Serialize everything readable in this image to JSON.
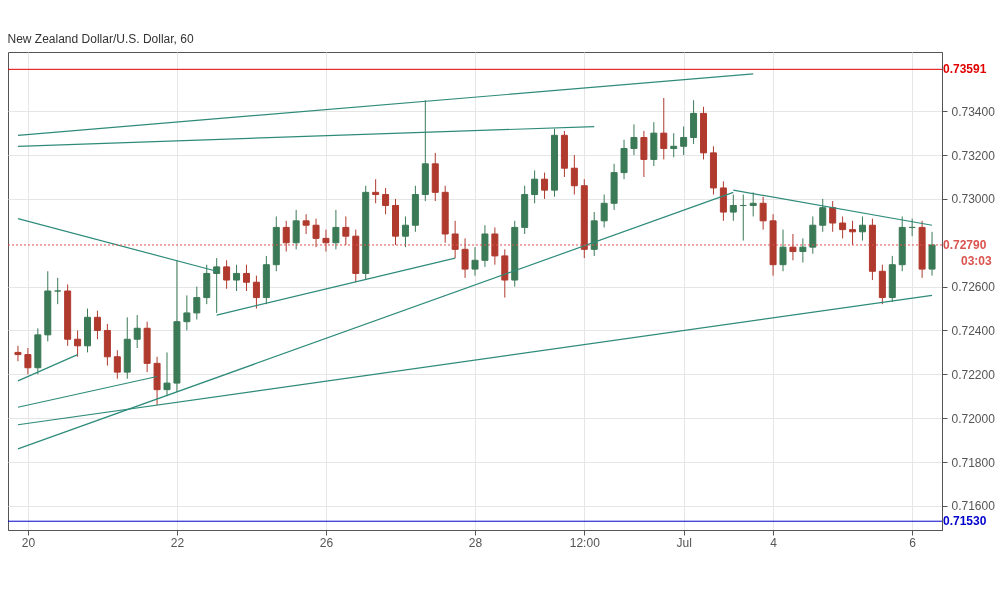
{
  "chart_data": {
    "type": "candlestick",
    "title": "New Zealand Dollar/U.S. Dollar, 60",
    "categories": [
      null,
      "20",
      null,
      null,
      null,
      null,
      null,
      null,
      null,
      null,
      null,
      null,
      null,
      null,
      null,
      null,
      "22",
      null,
      null,
      null,
      null,
      null,
      null,
      null,
      null,
      null,
      null,
      null,
      null,
      null,
      null,
      "26",
      null,
      null,
      null,
      null,
      null,
      null,
      null,
      null,
      null,
      null,
      null,
      null,
      null,
      null,
      "28",
      null,
      null,
      null,
      null,
      null,
      null,
      null,
      null,
      null,
      null,
      "12:00",
      null,
      null,
      null,
      null,
      null,
      null,
      null,
      null,
      null,
      "Jul",
      null,
      null,
      null,
      null,
      null,
      null,
      null,
      null,
      "4",
      null,
      null,
      null,
      null,
      null,
      null,
      null,
      null,
      null,
      null,
      null,
      null,
      null,
      "6",
      null,
      null
    ],
    "ohlc": [
      [
        0.723,
        0.7233,
        0.7226,
        0.7229
      ],
      [
        0.7229,
        0.7232,
        0.722,
        0.7223
      ],
      [
        0.7223,
        0.7241,
        0.722,
        0.7238
      ],
      [
        0.7238,
        0.7267,
        0.7235,
        0.7258
      ],
      [
        0.7258,
        0.7264,
        0.7252,
        0.7258
      ],
      [
        0.7258,
        0.7261,
        0.7233,
        0.7236
      ],
      [
        0.7236,
        0.724,
        0.7228,
        0.7233
      ],
      [
        0.7233,
        0.725,
        0.723,
        0.7246
      ],
      [
        0.7246,
        0.7249,
        0.7236,
        0.724
      ],
      [
        0.724,
        0.7243,
        0.7224,
        0.7228
      ],
      [
        0.7228,
        0.7231,
        0.7218,
        0.7221
      ],
      [
        0.7221,
        0.7246,
        0.7218,
        0.7236
      ],
      [
        0.7236,
        0.7247,
        0.7232,
        0.7241
      ],
      [
        0.7241,
        0.7244,
        0.7221,
        0.7225
      ],
      [
        0.7225,
        0.7228,
        0.7206,
        0.7213
      ],
      [
        0.7213,
        0.723,
        0.721,
        0.7216
      ],
      [
        0.7216,
        0.7272,
        0.7212,
        0.7244
      ],
      [
        0.7244,
        0.7256,
        0.724,
        0.7248
      ],
      [
        0.7248,
        0.726,
        0.7245,
        0.7255
      ],
      [
        0.7255,
        0.727,
        0.7252,
        0.7266
      ],
      [
        0.7266,
        0.7273,
        0.7248,
        0.7269
      ],
      [
        0.7269,
        0.7272,
        0.7259,
        0.7263
      ],
      [
        0.7263,
        0.727,
        0.7258,
        0.7266
      ],
      [
        0.7266,
        0.727,
        0.7258,
        0.7262
      ],
      [
        0.7262,
        0.7265,
        0.725,
        0.7255
      ],
      [
        0.7255,
        0.7274,
        0.7252,
        0.727
      ],
      [
        0.727,
        0.7292,
        0.7267,
        0.7287
      ],
      [
        0.7287,
        0.729,
        0.7276,
        0.728
      ],
      [
        0.728,
        0.7295,
        0.7277,
        0.729
      ],
      [
        0.729,
        0.7293,
        0.7284,
        0.7288
      ],
      [
        0.7288,
        0.7291,
        0.7278,
        0.7282
      ],
      [
        0.7282,
        0.7286,
        0.7276,
        0.728
      ],
      [
        0.728,
        0.7295,
        0.7277,
        0.7287
      ],
      [
        0.7287,
        0.7292,
        0.7279,
        0.7283
      ],
      [
        0.7283,
        0.7286,
        0.7262,
        0.7266
      ],
      [
        0.7266,
        0.7306,
        0.7263,
        0.7303
      ],
      [
        0.7303,
        0.7309,
        0.7298,
        0.7302
      ],
      [
        0.7302,
        0.7305,
        0.7293,
        0.7297
      ],
      [
        0.7297,
        0.73,
        0.7279,
        0.7283
      ],
      [
        0.7283,
        0.7292,
        0.7278,
        0.7288
      ],
      [
        0.7288,
        0.7306,
        0.7285,
        0.7302
      ],
      [
        0.7302,
        0.7345,
        0.7299,
        0.7316
      ],
      [
        0.7316,
        0.7321,
        0.7299,
        0.7303
      ],
      [
        0.7303,
        0.7306,
        0.728,
        0.7284
      ],
      [
        0.7284,
        0.729,
        0.7273,
        0.7277
      ],
      [
        0.7277,
        0.7282,
        0.7264,
        0.7268
      ],
      [
        0.7268,
        0.7278,
        0.7265,
        0.7272
      ],
      [
        0.7272,
        0.7288,
        0.7269,
        0.7284
      ],
      [
        0.7284,
        0.7287,
        0.727,
        0.7274
      ],
      [
        0.7274,
        0.7277,
        0.7255,
        0.7263
      ],
      [
        0.7263,
        0.729,
        0.726,
        0.7287
      ],
      [
        0.7287,
        0.7306,
        0.7284,
        0.7302
      ],
      [
        0.7302,
        0.7313,
        0.7298,
        0.7309
      ],
      [
        0.7309,
        0.7312,
        0.73,
        0.7304
      ],
      [
        0.7304,
        0.7332,
        0.7301,
        0.7329
      ],
      [
        0.7329,
        0.7331,
        0.731,
        0.7314
      ],
      [
        0.7314,
        0.732,
        0.7302,
        0.7306
      ],
      [
        0.7306,
        0.7309,
        0.7273,
        0.7277
      ],
      [
        0.7277,
        0.7294,
        0.7274,
        0.729
      ],
      [
        0.729,
        0.7302,
        0.7287,
        0.7298
      ],
      [
        0.7298,
        0.7316,
        0.7295,
        0.7312
      ],
      [
        0.7312,
        0.7327,
        0.7309,
        0.7323
      ],
      [
        0.7323,
        0.7334,
        0.732,
        0.7328
      ],
      [
        0.7328,
        0.7331,
        0.731,
        0.7318
      ],
      [
        0.7318,
        0.7335,
        0.7315,
        0.733
      ],
      [
        0.733,
        0.7346,
        0.7318,
        0.7323
      ],
      [
        0.7323,
        0.733,
        0.7319,
        0.7324
      ],
      [
        0.7324,
        0.7333,
        0.732,
        0.7328
      ],
      [
        0.7328,
        0.7345,
        0.7325,
        0.7339
      ],
      [
        0.7339,
        0.7342,
        0.7318,
        0.7321
      ],
      [
        0.7321,
        0.7324,
        0.7302,
        0.7305
      ],
      [
        0.7305,
        0.7308,
        0.729,
        0.7294
      ],
      [
        0.7294,
        0.7302,
        0.729,
        0.7297
      ],
      [
        0.7297,
        0.7302,
        0.7281,
        0.7297
      ],
      [
        0.7297,
        0.7303,
        0.7292,
        0.7298
      ],
      [
        0.7298,
        0.7301,
        0.7286,
        0.729
      ],
      [
        0.729,
        0.7293,
        0.7265,
        0.727
      ],
      [
        0.727,
        0.7286,
        0.7267,
        0.7278
      ],
      [
        0.7278,
        0.7284,
        0.7272,
        0.7276
      ],
      [
        0.7276,
        0.7282,
        0.7271,
        0.7278
      ],
      [
        0.7278,
        0.7292,
        0.7275,
        0.7288
      ],
      [
        0.7288,
        0.73,
        0.7285,
        0.7296
      ],
      [
        0.7296,
        0.7299,
        0.7285,
        0.7289
      ],
      [
        0.7289,
        0.7292,
        0.7282,
        0.7286
      ],
      [
        0.7286,
        0.729,
        0.7279,
        0.7285
      ],
      [
        0.7285,
        0.7292,
        0.7281,
        0.7288
      ],
      [
        0.7288,
        0.7291,
        0.7263,
        0.7267
      ],
      [
        0.7267,
        0.727,
        0.7252,
        0.7255
      ],
      [
        0.7255,
        0.7274,
        0.7253,
        0.727
      ],
      [
        0.727,
        0.7292,
        0.7267,
        0.7287
      ],
      [
        0.7287,
        0.7291,
        0.7283,
        0.7287
      ],
      [
        0.7287,
        0.729,
        0.7264,
        0.7268
      ],
      [
        0.7268,
        0.7285,
        0.7265,
        0.7279
      ]
    ],
    "colors": [
      "#b03a2e",
      "#b03a2e",
      "#3b7a57",
      "#3b7a57",
      "#3b7a57",
      "#b03a2e",
      "#b03a2e",
      "#3b7a57",
      "#b03a2e",
      "#b03a2e",
      "#b03a2e",
      "#3b7a57",
      "#3b7a57",
      "#b03a2e",
      "#b03a2e",
      "#3b7a57",
      "#3b7a57",
      "#3b7a57",
      "#3b7a57",
      "#3b7a57",
      "#3b7a57",
      "#b03a2e",
      "#3b7a57",
      "#b03a2e",
      "#b03a2e",
      "#3b7a57",
      "#3b7a57",
      "#b03a2e",
      "#3b7a57",
      "#b03a2e",
      "#b03a2e",
      "#b03a2e",
      "#3b7a57",
      "#b03a2e",
      "#b03a2e",
      "#3b7a57",
      "#b03a2e",
      "#b03a2e",
      "#b03a2e",
      "#3b7a57",
      "#3b7a57",
      "#3b7a57",
      "#b03a2e",
      "#b03a2e",
      "#b03a2e",
      "#b03a2e",
      "#3b7a57",
      "#3b7a57",
      "#b03a2e",
      "#b03a2e",
      "#3b7a57",
      "#3b7a57",
      "#3b7a57",
      "#b03a2e",
      "#3b7a57",
      "#b03a2e",
      "#b03a2e",
      "#b03a2e",
      "#3b7a57",
      "#3b7a57",
      "#3b7a57",
      "#3b7a57",
      "#3b7a57",
      "#b03a2e",
      "#3b7a57",
      "#b03a2e",
      "#3b7a57",
      "#3b7a57",
      "#3b7a57",
      "#b03a2e",
      "#b03a2e",
      "#b03a2e",
      "#3b7a57",
      "#3b7a57",
      "#3b7a57",
      "#b03a2e",
      "#b03a2e",
      "#3b7a57",
      "#b03a2e",
      "#3b7a57",
      "#3b7a57",
      "#3b7a57",
      "#b03a2e",
      "#b03a2e",
      "#b03a2e",
      "#3b7a57",
      "#b03a2e",
      "#b03a2e",
      "#3b7a57",
      "#3b7a57",
      "#3b7a57",
      "#b03a2e",
      "#3b7a57"
    ],
    "series": [
      {
        "type": "line",
        "color": "#2e8b7a",
        "values": [
          0.7329,
          null,
          null,
          null,
          null,
          null,
          null,
          null,
          null,
          null,
          null,
          null,
          null,
          null,
          null,
          null,
          null,
          null,
          null,
          null,
          null,
          null,
          null,
          null,
          null,
          null,
          null,
          null,
          null,
          null,
          null,
          null,
          null,
          null,
          null,
          null,
          null,
          null,
          null,
          null,
          null,
          null,
          null,
          null,
          null,
          null,
          null,
          null,
          null,
          null,
          null,
          null,
          null,
          null,
          null,
          null,
          null,
          null,
          null,
          null,
          null,
          null,
          null,
          null,
          null,
          null,
          null,
          null,
          null,
          null,
          null,
          null,
          null,
          null,
          0.7357,
          null,
          null,
          null,
          null,
          null,
          null,
          null,
          null,
          null,
          null,
          null,
          null,
          null,
          null,
          null,
          null,
          null,
          null
        ]
      },
      {
        "type": "line",
        "color": "#2e8b7a",
        "values": [
          0.7324,
          null,
          null,
          null,
          null,
          null,
          null,
          null,
          null,
          null,
          null,
          null,
          null,
          null,
          null,
          null,
          null,
          null,
          null,
          null,
          null,
          null,
          null,
          null,
          null,
          null,
          null,
          null,
          null,
          null,
          null,
          null,
          null,
          null,
          null,
          null,
          null,
          null,
          null,
          null,
          null,
          null,
          null,
          null,
          null,
          null,
          null,
          null,
          null,
          null,
          null,
          null,
          null,
          null,
          null,
          null,
          null,
          null,
          0.7333,
          null,
          null,
          null,
          null,
          null,
          null,
          null,
          null,
          null,
          null,
          null,
          null,
          null,
          null,
          null,
          null,
          null,
          null,
          null,
          null,
          null,
          null,
          null,
          null,
          null,
          null,
          null,
          null,
          null,
          null,
          null,
          null,
          null,
          null
        ]
      },
      {
        "type": "line",
        "color": "#2e8b7a",
        "values": [
          0.7291,
          null,
          null,
          null,
          null,
          null,
          null,
          null,
          null,
          null,
          null,
          null,
          null,
          null,
          null,
          null,
          null,
          null,
          null,
          null,
          0.7267,
          null,
          null,
          null,
          null,
          null,
          null,
          null,
          null,
          null,
          null,
          null,
          null,
          null,
          null,
          null,
          null,
          null,
          null,
          null,
          null,
          null,
          null,
          null,
          null,
          null,
          null,
          null,
          null,
          null,
          null,
          null,
          null,
          null,
          null,
          null,
          null,
          null,
          null,
          null,
          null,
          null,
          null,
          null,
          null,
          null,
          null,
          null,
          null,
          null,
          null,
          null,
          null,
          null,
          null,
          null,
          null,
          null,
          null,
          null,
          null,
          null,
          null,
          null,
          null,
          null,
          null,
          null,
          null,
          null,
          null,
          null,
          null
        ]
      },
      {
        "type": "line",
        "color": "#2e8b7a",
        "values": [
          null,
          null,
          null,
          null,
          null,
          null,
          null,
          null,
          null,
          null,
          null,
          null,
          null,
          null,
          null,
          null,
          null,
          null,
          null,
          null,
          0.7247,
          null,
          null,
          null,
          null,
          null,
          null,
          null,
          null,
          null,
          null,
          null,
          null,
          null,
          null,
          null,
          null,
          null,
          null,
          null,
          null,
          null,
          null,
          null,
          0.7273,
          null,
          null,
          null,
          null,
          null,
          null,
          null,
          null,
          null,
          null,
          null,
          null,
          null,
          null,
          null,
          null,
          null,
          null,
          null,
          null,
          null,
          null,
          null,
          null,
          null,
          null,
          null,
          null,
          null,
          null,
          null,
          null,
          null,
          null,
          null,
          null,
          null,
          null,
          null,
          null,
          null,
          null,
          null,
          null,
          null,
          null,
          null,
          null
        ]
      },
      {
        "type": "line",
        "color": "#2e8b7a",
        "values": [
          0.7217,
          null,
          null,
          null,
          null,
          null,
          0.7229,
          null,
          null,
          null,
          null,
          null,
          null,
          null,
          null,
          null,
          null,
          null,
          null,
          null,
          null,
          null,
          null,
          null,
          null,
          null,
          null,
          null,
          null,
          null,
          null,
          null,
          null,
          null,
          null,
          null,
          null,
          null,
          null,
          null,
          null,
          null,
          null,
          null,
          null,
          null,
          null,
          null,
          null,
          null,
          null,
          null,
          null,
          null,
          null,
          null,
          null,
          null,
          null,
          null,
          null,
          null,
          null,
          null,
          null,
          null,
          null,
          null,
          null,
          null,
          null,
          null,
          null,
          null,
          null,
          null,
          null,
          null,
          null,
          null,
          null,
          null,
          null,
          null,
          null,
          null,
          null,
          null,
          null,
          null,
          null,
          null,
          null
        ]
      },
      {
        "type": "line",
        "color": "#2e8b7a",
        "values": [
          0.7205,
          null,
          null,
          null,
          null,
          null,
          null,
          null,
          null,
          null,
          null,
          null,
          null,
          null,
          0.7219,
          null,
          null,
          null,
          null,
          null,
          null,
          null,
          null,
          null,
          null,
          null,
          null,
          null,
          null,
          null,
          null,
          null,
          null,
          null,
          null,
          null,
          null,
          null,
          null,
          null,
          null,
          null,
          null,
          null,
          null,
          null,
          null,
          null,
          null,
          null,
          null,
          null,
          null,
          null,
          null,
          null,
          null,
          null,
          null,
          null,
          null,
          null,
          null,
          null,
          null,
          null,
          null,
          null,
          null,
          null,
          null,
          null,
          null,
          null,
          null,
          null,
          null,
          null,
          null,
          null,
          null,
          null,
          null,
          null,
          null,
          null,
          null,
          null,
          null,
          null,
          null,
          null,
          null
        ]
      },
      {
        "type": "line",
        "color": "#2e8b7a",
        "values": [
          0.7197,
          null,
          null,
          null,
          null,
          null,
          null,
          null,
          null,
          null,
          null,
          null,
          null,
          null,
          null,
          null,
          null,
          null,
          null,
          null,
          null,
          null,
          null,
          null,
          null,
          null,
          null,
          null,
          null,
          null,
          null,
          null,
          null,
          null,
          null,
          null,
          null,
          null,
          null,
          null,
          null,
          null,
          null,
          null,
          null,
          null,
          null,
          null,
          null,
          null,
          null,
          null,
          null,
          null,
          null,
          null,
          null,
          null,
          null,
          null,
          null,
          null,
          null,
          null,
          null,
          null,
          null,
          null,
          null,
          null,
          null,
          null,
          null,
          null,
          null,
          null,
          null,
          null,
          null,
          null,
          null,
          null,
          null,
          null,
          null,
          null,
          null,
          null,
          null,
          null,
          null,
          null,
          0.7256
        ]
      },
      {
        "type": "line",
        "color": "#2e8b7a",
        "values": [
          0.7186,
          null,
          null,
          null,
          null,
          null,
          null,
          null,
          null,
          null,
          null,
          null,
          null,
          null,
          null,
          null,
          null,
          null,
          null,
          null,
          null,
          null,
          null,
          null,
          null,
          null,
          null,
          null,
          null,
          null,
          null,
          null,
          null,
          null,
          null,
          null,
          null,
          null,
          null,
          null,
          null,
          null,
          null,
          null,
          null,
          null,
          null,
          null,
          null,
          null,
          null,
          null,
          null,
          null,
          null,
          null,
          null,
          null,
          null,
          null,
          null,
          null,
          null,
          null,
          null,
          null,
          null,
          null,
          null,
          null,
          null,
          null,
          0.7303,
          null,
          null,
          null,
          null,
          null,
          null,
          null,
          null,
          null,
          null,
          null,
          null,
          null,
          null,
          null,
          null,
          null,
          null,
          null,
          null
        ]
      },
      {
        "type": "line",
        "color": "#2e8b7a",
        "values": [
          null,
          null,
          null,
          null,
          null,
          null,
          null,
          null,
          null,
          null,
          null,
          null,
          null,
          null,
          null,
          null,
          null,
          null,
          null,
          null,
          null,
          null,
          null,
          null,
          null,
          null,
          null,
          null,
          null,
          null,
          null,
          null,
          null,
          null,
          null,
          null,
          null,
          null,
          null,
          null,
          null,
          null,
          null,
          null,
          null,
          null,
          null,
          null,
          null,
          null,
          null,
          null,
          null,
          null,
          null,
          null,
          null,
          null,
          null,
          null,
          null,
          null,
          null,
          null,
          null,
          null,
          null,
          null,
          null,
          null,
          null,
          null,
          0.7304,
          null,
          null,
          null,
          null,
          null,
          null,
          null,
          null,
          null,
          null,
          null,
          null,
          null,
          null,
          null,
          null,
          null,
          null,
          null,
          0.7288
        ]
      }
    ],
    "ylim": [
      0.7149,
      0.7367
    ],
    "yticks": [
      {
        "value": 0.716,
        "label": "0.71600"
      },
      {
        "value": 0.718,
        "label": "0.71800"
      },
      {
        "value": 0.72,
        "label": "0.72000"
      },
      {
        "value": 0.722,
        "label": "0.72200"
      },
      {
        "value": 0.724,
        "label": "0.72400"
      },
      {
        "value": 0.726,
        "label": "0.72600"
      },
      {
        "value": 0.73,
        "label": "0.73000"
      },
      {
        "value": 0.732,
        "label": "0.73200"
      },
      {
        "value": 0.734,
        "label": "0.73400"
      }
    ],
    "grid": true,
    "ref_lines": [
      {
        "axis": "y",
        "value": 0.73591,
        "label": "0.73591",
        "color": "#e00000",
        "line_style": "solid"
      },
      {
        "axis": "y",
        "value": 0.7153,
        "label": "0.71530",
        "color": "#0000cc",
        "line_style": "solid"
      },
      {
        "axis": "y",
        "value": 0.7279,
        "label": "0.72790",
        "color": "#d9534f",
        "line_style": "dotted"
      }
    ],
    "annotations": [
      "03:03"
    ]
  }
}
